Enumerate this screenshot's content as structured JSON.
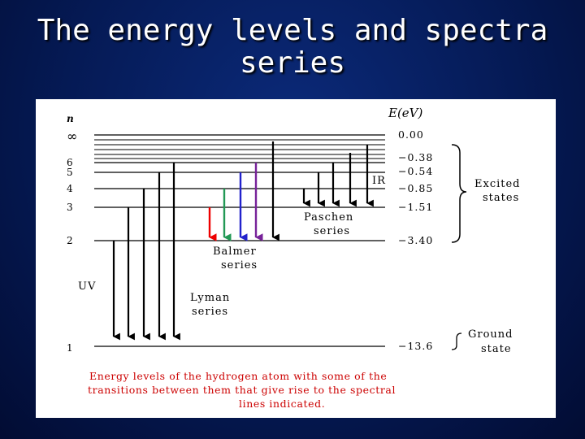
{
  "slide": {
    "title_line1": "The energy levels and spectra",
    "title_line2": "series"
  },
  "diagram": {
    "n_axis_label": "n",
    "energy_axis_label": "E(eV)",
    "levels": [
      {
        "n": "∞",
        "energy": "0.00"
      },
      {
        "n": "6",
        "energy": "−0.38"
      },
      {
        "n": "5",
        "energy": "−0.54"
      },
      {
        "n": "4",
        "energy": "−0.85"
      },
      {
        "n": "3",
        "energy": "−1.51"
      },
      {
        "n": "2",
        "energy": "−3.40"
      },
      {
        "n": "1",
        "energy": "−13.6"
      }
    ],
    "labels": {
      "uv": "UV",
      "ir": "IR",
      "lyman": [
        "Lyman",
        "series"
      ],
      "balmer": [
        "Balmer",
        "series"
      ],
      "paschen": [
        "Paschen",
        "series"
      ],
      "excited": [
        "Excited",
        "states"
      ],
      "ground": [
        "Ground",
        "state"
      ]
    },
    "caption": [
      "Energy levels of the hydrogen atom with some of the",
      "transitions between them that give rise to the spectral",
      "lines indicated."
    ],
    "colors": {
      "caption": "#cc0000",
      "balmer_red": "#ee0000",
      "balmer_green": "#229955",
      "balmer_blue": "#2222cc",
      "balmer_violet": "#772299"
    }
  }
}
